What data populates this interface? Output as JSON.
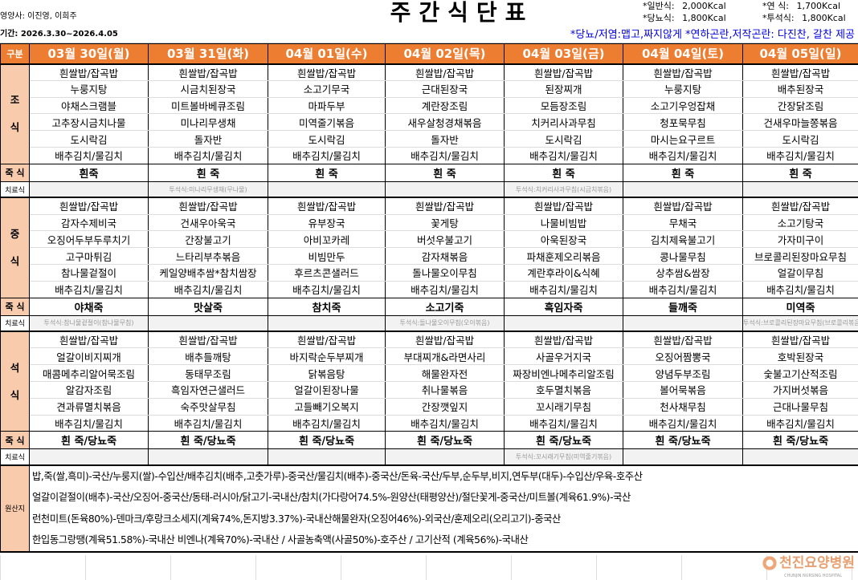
{
  "header": {
    "title": "주간식단표",
    "dietitian": "영양사: 이진영, 이희주",
    "period": "기간: 2026.3.30~2026.4.05",
    "kcal": [
      {
        "label": "*일반식:",
        "value": "2,000Kcal"
      },
      {
        "label": "*연    식:",
        "value": "1,700Kcal"
      },
      {
        "label": "*당뇨식:",
        "value": "1,800Kcal"
      },
      {
        "label": "*투석식:",
        "value": "1,800Kcal"
      }
    ],
    "note": "*당뇨/저염:맵고,짜지않게  *연하곤란,저작곤란: 다진찬, 갈찬 제공"
  },
  "table": {
    "corner": "구분",
    "juk_label": "죽 식",
    "therapy_label": "치료식",
    "origin_label": "원산지",
    "days": [
      "03월 30일(월)",
      "03월 31일(화)",
      "04월 01일(수)",
      "04월 02일(목)",
      "04월 03일(금)",
      "04월 04일(토)",
      "04월 05일(일)"
    ],
    "meals": [
      {
        "name": "조\n식",
        "items": [
          [
            "흰쌀밥/잡곡밥",
            "누룽지탕",
            "야채스크램블",
            "고추장시금치나물",
            "도시락김",
            "배추김치/물김치"
          ],
          [
            "흰쌀밥/잡곡밥",
            "시금치된장국",
            "미트볼바베큐조림",
            "미나리무생채",
            "돌자반",
            "배추김치/물김치"
          ],
          [
            "흰쌀밥/잡곡밥",
            "소고기무국",
            "마파두부",
            "미역줄기볶음",
            "도시락김",
            "배추김치/물김치"
          ],
          [
            "흰쌀밥/잡곡밥",
            "근대된장국",
            "계란장조림",
            "새우살청경채볶음",
            "돌자반",
            "배추김치/물김치"
          ],
          [
            "흰쌀밥/잡곡밥",
            "된장찌개",
            "모듬장조림",
            "치커리사과무침",
            "도시락김",
            "배추김치/물김치"
          ],
          [
            "흰쌀밥/잡곡밥",
            "누룽지탕",
            "소고기우엉잡채",
            "청포묵무침",
            "마시는요구르트",
            "배추김치/물김치"
          ],
          [
            "흰쌀밥/잡곡밥",
            "배추된장국",
            "간장닭조림",
            "건새우마늘쫑볶음",
            "도시락김",
            "배추김치/물김치"
          ]
        ],
        "juk": [
          "흰죽",
          "흰 죽",
          "흰 죽",
          "흰 죽",
          "흰 죽",
          "흰 죽",
          "흰 죽"
        ],
        "therapy": [
          "",
          "투석식:미나리무생채(무나물)",
          "",
          "",
          "투석식:치커리사과무침(시금치볶음)",
          "",
          ""
        ]
      },
      {
        "name": "중\n식",
        "items": [
          [
            "흰쌀밥/잡곡밥",
            "감자수제비국",
            "오징어두부두루치기",
            "고구마튀김",
            "참나물겉절이",
            "배추김치/물김치"
          ],
          [
            "흰쌀밥/잡곡밥",
            "건새우아욱국",
            "간장불고기",
            "느타리부추볶음",
            "케일양배추쌈*참치쌈장",
            "배추김치/물김치"
          ],
          [
            "흰쌀밥/잡곡밥",
            "유부장국",
            "아비꼬카레",
            "비빔만두",
            "후르츠콘샐러드",
            "배추김치/물김치"
          ],
          [
            "흰쌀밥/잡곡밥",
            "꽃게탕",
            "버섯우불고기",
            "감자채볶음",
            "돌나물오이무침",
            "배추김치/물김치"
          ],
          [
            "흰쌀밥/잡곡밥",
            "나물비빔밥",
            "아욱된장국",
            "파채훈제오리볶음",
            "계란후라이&식혜",
            "배추김치/물김치"
          ],
          [
            "흰쌀밥/잡곡밥",
            "무채국",
            "김치제육불고기",
            "콩나물무침",
            "상추쌈&쌈장",
            "배추김치/물김치"
          ],
          [
            "흰쌀밥/잡곡밥",
            "소고기탕국",
            "가자미구이",
            "브로콜리된장마요무침",
            "얼갈이무침",
            "배추김치/물김치"
          ]
        ],
        "juk": [
          "야채죽",
          "맛살죽",
          "참치죽",
          "소고기죽",
          "흑임자죽",
          "들깨죽",
          "미역죽"
        ],
        "therapy": [
          "투석식:참나물겉절이(참나물무침)",
          "",
          "",
          "투석식:돌나물오이무침(오이볶음)",
          "",
          "",
          "투석식:브로콜리된장마요무침(브로콜리볶음)"
        ]
      },
      {
        "name": "석\n식",
        "items": [
          [
            "흰쌀밥/잡곡밥",
            "얼갈이비지찌개",
            "매콤메추리알어묵조림",
            "알감자조림",
            "견과류멸치볶음",
            "배추김치/물김치"
          ],
          [
            "흰쌀밥/잡곡밥",
            "배추들깨탕",
            "동태무조림",
            "흑임자연근샐러드",
            "숙주맛살무침",
            "배추김치/물김치"
          ],
          [
            "흰쌀밥/잡곡밥",
            "바지락순두부찌개",
            "닭볶음탕",
            "얼갈이된장나물",
            "고들빼기오복지",
            "배추김치/물김치"
          ],
          [
            "흰쌀밥/잡곡밥",
            "부대찌개&라면사리",
            "해물완자전",
            "취나물볶음",
            "간장깻잎지",
            "배추김치/물김치"
          ],
          [
            "흰쌀밥/잡곡밥",
            "사골우거지국",
            "짜장비엔나메추리알조림",
            "호두멸치볶음",
            "꼬시래기무침",
            "배추김치/물김치"
          ],
          [
            "흰쌀밥/잡곡밥",
            "오징어짬뽕국",
            "양념두부조림",
            "볼어묵볶음",
            "천사채무침",
            "배추김치/물김치"
          ],
          [
            "흰쌀밥/잡곡밥",
            "호박된장국",
            "숯불고기산적조림",
            "가지버섯볶음",
            "근대나물무침",
            "배추김치/물김치"
          ]
        ],
        "juk": [
          "흰 죽/당뇨죽",
          "흰 죽/당뇨죽",
          "흰 죽/당뇨죽",
          "흰 죽/당뇨죽",
          "흰 죽/당뇨죽",
          "흰 죽/당뇨죽",
          "흰 죽/당뇨죽"
        ],
        "therapy": [
          "",
          "",
          "",
          "",
          "투석식:꼬시래기무침(미역줄기볶음)",
          "",
          ""
        ]
      }
    ],
    "origin": [
      "밥,죽(쌀,흑미)-국산/누룽지(쌀)-수입산/배추김치(배추,고춧가루)-중국산/물김치(배추)-중국산/돈육-국산/두부,순두부,비지,연두부(대두)-수입산/우육-호주산",
      "얼갈이겉절이(배추)-국산/오징어-중국산/동태-러시아/닭고기-국내산/참치(가다랑어74.5%-원양산(태평양산)/절단꽃게-중국산/미트볼(계육61.9%)-국산",
      " 런천미트(돈육80%)-덴마크/후랑크소세지(계육74%,돈지방3.37%)-국내산해물완자(오징어46%)-외국산/훈제오리(오리고기)-중국산",
      "한입동그랑땡(계육51.58%)-국내산 비엔나(계육70%)-국내산 / 사골농축액(사골50%)-호주산 / 고기산적 (계육56%)-국내산"
    ]
  },
  "logo": {
    "name": "천진요양병원",
    "sub": "CHUNJIN NURSING HOSPITAL"
  },
  "colors": {
    "header": "#ED7D31",
    "label": "#F8CBAD",
    "note": "#0000E0"
  }
}
